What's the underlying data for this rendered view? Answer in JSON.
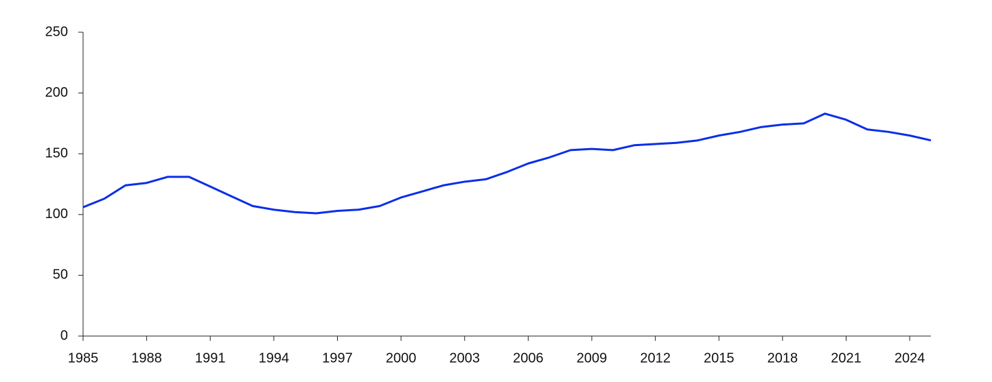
{
  "chart_data": {
    "type": "line",
    "x": [
      1985,
      1986,
      1987,
      1988,
      1989,
      1990,
      1991,
      1992,
      1993,
      1994,
      1995,
      1996,
      1997,
      1998,
      1999,
      2000,
      2001,
      2002,
      2003,
      2004,
      2005,
      2006,
      2007,
      2008,
      2009,
      2010,
      2011,
      2012,
      2013,
      2014,
      2015,
      2016,
      2017,
      2018,
      2019,
      2020,
      2021,
      2022,
      2023,
      2024,
      2025
    ],
    "series": [
      {
        "color": "#0a2ee8",
        "values": [
          106,
          113,
          124,
          126,
          131,
          131,
          123,
          115,
          107,
          104,
          102,
          101,
          103,
          104,
          107,
          114,
          119,
          124,
          127,
          129,
          135,
          142,
          147,
          153,
          154,
          153,
          157,
          158,
          159,
          161,
          165,
          168,
          172,
          174,
          175,
          183,
          178,
          170,
          168,
          165,
          161
        ]
      }
    ],
    "xlim": [
      1985,
      2025
    ],
    "xticks": [
      1985,
      1988,
      1991,
      1994,
      1997,
      2000,
      2003,
      2006,
      2009,
      2012,
      2015,
      2018,
      2021,
      2024
    ],
    "ylim": [
      0,
      250
    ],
    "yticks": [
      0,
      50,
      100,
      150,
      200,
      250
    ]
  }
}
